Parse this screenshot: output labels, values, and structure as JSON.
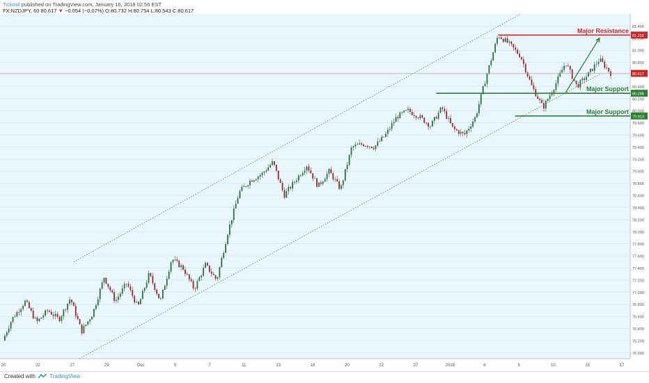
{
  "header": {
    "author": "Tickmill",
    "published": "published on TradingView.com, January 16, 2018 02:56 EST",
    "symbol": "FX:NZDJPY, 60",
    "last": "80.617",
    "change_arrow": "▼",
    "change": "−0.054 (−0.07%)",
    "ohlc": "O:80.732 H:80.754 L:80.543 C:80.617"
  },
  "footer": {
    "created_with": "Created with",
    "brand": "TradingView"
  },
  "colors": {
    "background": "#eaf6fd",
    "resistance": "#c62828",
    "support": "#2e7d32",
    "candle_up": "#2e6b3a",
    "candle_down": "#8b2a2a",
    "channel": "#4f8a3a",
    "price_line": "#b0a090"
  },
  "chart_data": {
    "type": "candlestick",
    "symbol": "FX:NZDJPY",
    "timeframe": "60",
    "ylim": [
      75.9,
      81.6
    ],
    "y_ticks": [
      "76.000",
      "76.200",
      "76.400",
      "76.600",
      "76.800",
      "77.000",
      "77.200",
      "77.400",
      "77.600",
      "77.800",
      "78.000",
      "78.200",
      "78.400",
      "78.600",
      "78.800",
      "79.000",
      "79.200",
      "79.400",
      "79.600",
      "79.800",
      "80.000",
      "80.200",
      "80.400",
      "80.600",
      "80.800",
      "81.000",
      "81.200",
      "81.400"
    ],
    "x_ticks": [
      "20",
      "22",
      "27",
      "29",
      "Dec",
      "5",
      "7",
      "11",
      "13",
      "18",
      "20",
      "22",
      "27",
      "2018",
      "4",
      "8",
      "10",
      "15",
      "17"
    ],
    "price_path": [
      [
        0,
        76.2
      ],
      [
        0.8,
        76.55
      ],
      [
        2.0,
        76.85
      ],
      [
        3.0,
        76.5
      ],
      [
        4.0,
        76.7
      ],
      [
        5.0,
        76.55
      ],
      [
        6.0,
        76.9
      ],
      [
        7.0,
        76.35
      ],
      [
        8.0,
        76.65
      ],
      [
        9.0,
        77.25
      ],
      [
        10.0,
        76.85
      ],
      [
        11.0,
        77.15
      ],
      [
        12.0,
        76.75
      ],
      [
        13.0,
        77.3
      ],
      [
        14.0,
        76.85
      ],
      [
        15.0,
        77.55
      ],
      [
        16.0,
        77.4
      ],
      [
        17.0,
        77.05
      ],
      [
        18.0,
        77.45
      ],
      [
        19.0,
        77.2
      ],
      [
        20.0,
        78.0
      ],
      [
        21.0,
        78.65
      ],
      [
        22.0,
        78.85
      ],
      [
        23.0,
        78.95
      ],
      [
        24.0,
        79.15
      ],
      [
        25.0,
        78.6
      ],
      [
        26.0,
        78.85
      ],
      [
        27.0,
        79.1
      ],
      [
        28.0,
        78.75
      ],
      [
        29.0,
        79.0
      ],
      [
        30.0,
        78.7
      ],
      [
        31.0,
        79.4
      ],
      [
        32.0,
        79.45
      ],
      [
        33.0,
        79.4
      ],
      [
        34.0,
        79.6
      ],
      [
        35.0,
        79.9
      ],
      [
        36.0,
        80.0
      ],
      [
        37.0,
        79.9
      ],
      [
        38.0,
        79.75
      ],
      [
        39.0,
        80.05
      ],
      [
        40.0,
        79.7
      ],
      [
        41.0,
        79.6
      ],
      [
        42.0,
        79.9
      ],
      [
        43.0,
        80.6
      ],
      [
        44.0,
        81.25
      ],
      [
        45.0,
        81.1
      ],
      [
        46.0,
        80.9
      ],
      [
        47.0,
        80.4
      ],
      [
        48.0,
        80.05
      ],
      [
        49.0,
        80.4
      ],
      [
        50.0,
        80.8
      ],
      [
        51.0,
        80.4
      ],
      [
        52.0,
        80.6
      ],
      [
        53.0,
        80.85
      ],
      [
        54.0,
        80.62
      ]
    ],
    "current_price": 80.617,
    "levels": [
      {
        "name": "Major Resistance",
        "price": 81.25,
        "price_label": "81.250",
        "kind": "resistance",
        "x_start": 44.0
      },
      {
        "name": "Major Support",
        "price": 80.288,
        "price_label": "80.288",
        "kind": "support",
        "x_start": 38.5
      },
      {
        "name": "Major Support",
        "price": 79.913,
        "price_label": "79.913",
        "kind": "support",
        "x_start": 45.5
      }
    ],
    "channel": {
      "upper": {
        "from": [
          6.3,
          77.5
        ],
        "to": [
          46.0,
          81.6
        ]
      },
      "lower": {
        "from": [
          6.8,
          75.9
        ],
        "to": [
          53.0,
          80.6
        ]
      }
    },
    "arrow": {
      "from": [
        50.0,
        80.3
      ],
      "to": [
        53.0,
        81.2
      ]
    },
    "grid": true,
    "legend": "none"
  }
}
